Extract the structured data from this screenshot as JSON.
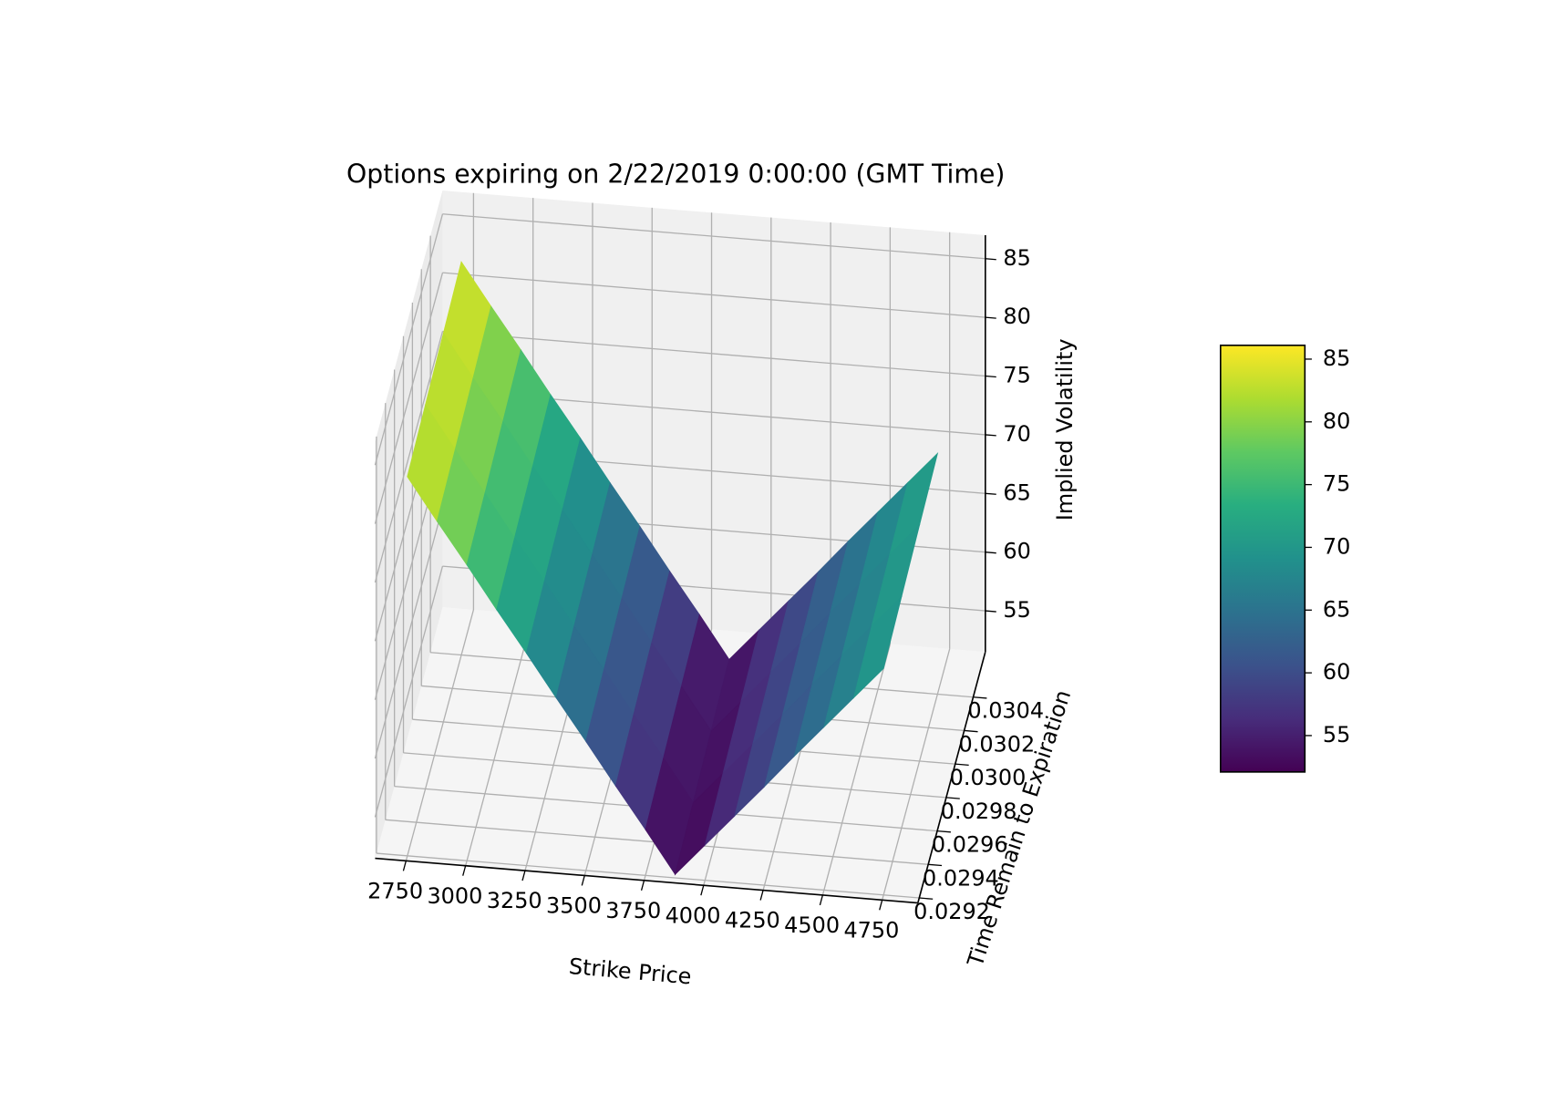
{
  "chart_data": {
    "type": "surface",
    "title": "Options expiring on 2/22/2019 0:00:00 (GMT Time)",
    "xlabel": "Strike Price",
    "ylabel": "Time Remain to Expiration",
    "zlabel": "Implied Volatility",
    "x": [
      2750,
      2875,
      3000,
      3125,
      3250,
      3375,
      3500,
      3625,
      3750,
      3875,
      4000,
      4125,
      4250,
      4375,
      4500,
      4625,
      4750
    ],
    "y": [
      0.0292,
      0.0296,
      {
        "value": 0.03,
        "label": "0.0300"
      },
      0.0304
    ],
    "values": [
      [
        83.8,
        80.2,
        76.7,
        73.1,
        69.6,
        66.0,
        62.5,
        58.9,
        55.4,
        51.8,
        54.5,
        57.2,
        59.9,
        62.7,
        65.4,
        68.1,
        70.8
      ],
      [
        84.2,
        80.6,
        77.1,
        73.5,
        70.0,
        66.4,
        62.9,
        59.3,
        55.8,
        52.2,
        54.9,
        57.6,
        60.3,
        63.1,
        65.8,
        68.5,
        71.2
      ],
      [
        84.6,
        81.0,
        77.5,
        73.9,
        70.4,
        66.8,
        63.3,
        59.7,
        56.2,
        52.6,
        55.3,
        58.0,
        60.7,
        63.5,
        66.2,
        68.9,
        71.6
      ],
      [
        85.0,
        81.4,
        77.9,
        74.3,
        70.8,
        67.2,
        63.7,
        60.1,
        56.6,
        53.0,
        55.7,
        58.4,
        61.1,
        63.9,
        66.6,
        69.3,
        72.0
      ]
    ],
    "xlim": [
      2620,
      4900
    ],
    "xticks": [
      2750,
      3000,
      3250,
      3500,
      3750,
      4000,
      4250,
      4500,
      4750
    ],
    "ylim": [
      0.02917,
      0.03067
    ],
    "yticks": [
      0.0292,
      0.0294,
      0.0296,
      0.0298,
      {
        "value": 0.03,
        "label": "0.0300"
      },
      0.0302,
      0.0304
    ],
    "zlim": [
      51.5,
      87
    ],
    "zticks": [
      55,
      60,
      65,
      70,
      75,
      80,
      85
    ],
    "grid": true,
    "colormap": [
      "#440154",
      "#472d7b",
      "#3b528b",
      "#2c728e",
      "#21918c",
      "#28ae80",
      "#5ec962",
      "#addc30",
      "#fde725"
    ],
    "colorbar": {
      "clim": [
        52.1,
        86.1
      ],
      "ticks": [
        55,
        60,
        65,
        70,
        75,
        80,
        85
      ]
    }
  }
}
